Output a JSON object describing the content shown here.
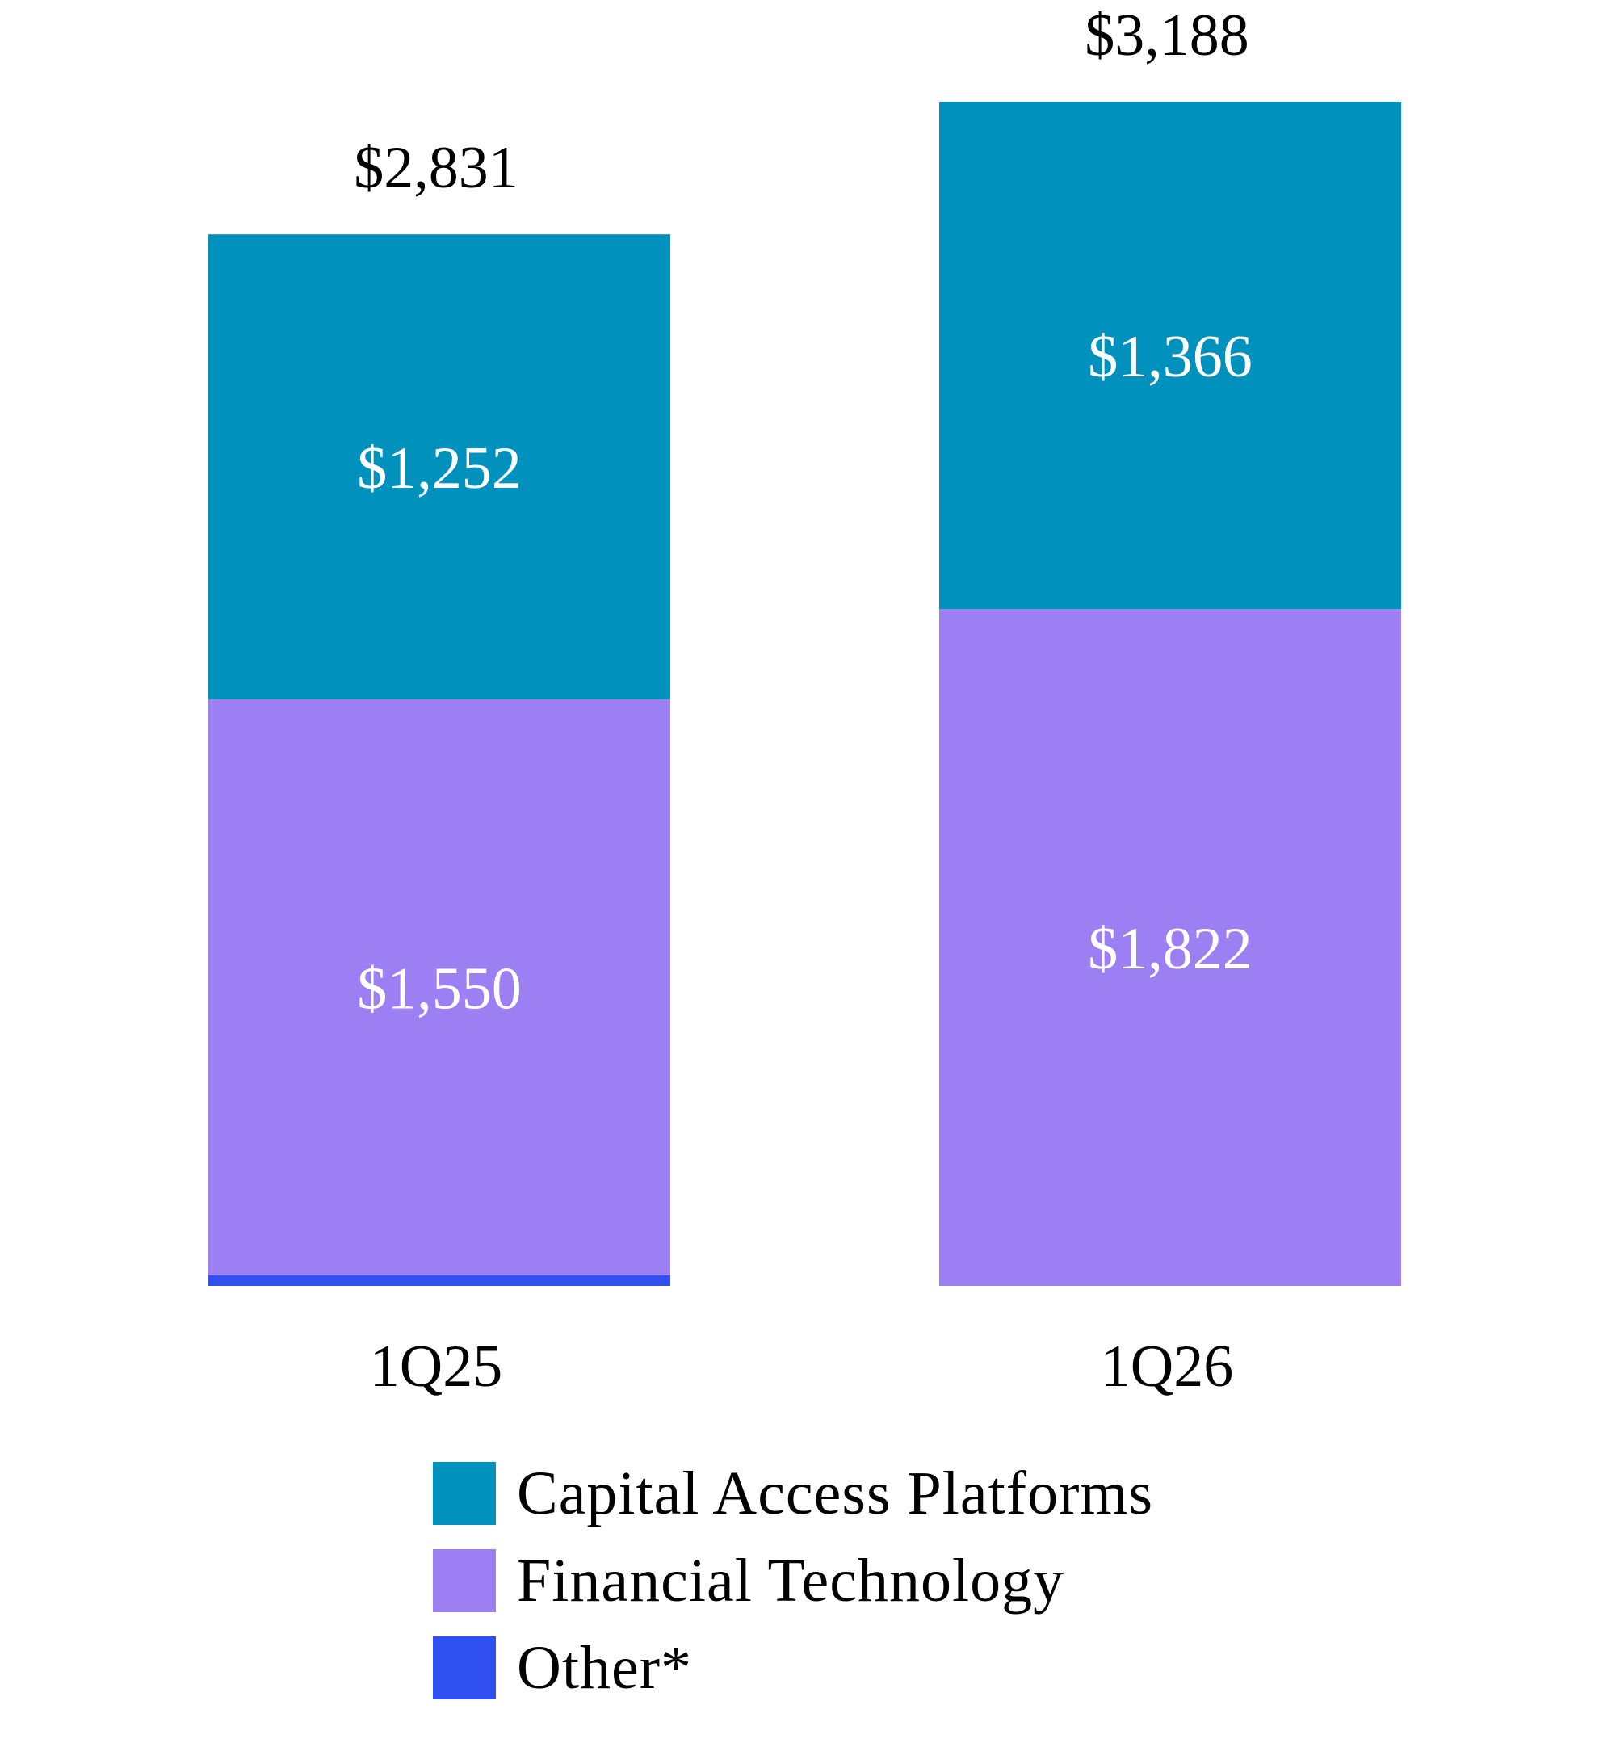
{
  "chart_data": {
    "type": "bar",
    "stacked": true,
    "categories": [
      "1Q25",
      "1Q26"
    ],
    "series": [
      {
        "name": "Other*",
        "values": [
          29,
          0
        ],
        "value_labels": [
          "",
          ""
        ],
        "color": "#2f4ff0"
      },
      {
        "name": "Financial Technology",
        "values": [
          1550,
          1822
        ],
        "value_labels": [
          "$1,550",
          "$1,822"
        ],
        "color": "#9b7ff3"
      },
      {
        "name": "Capital Access Platforms",
        "values": [
          1252,
          1366
        ],
        "value_labels": [
          "$1,252",
          "$1,366"
        ],
        "color": "#0091bd"
      }
    ],
    "totals": [
      2831,
      3188
    ],
    "total_labels": [
      "$2,831",
      "$3,188"
    ],
    "legend": [
      {
        "name": "Capital Access Platforms",
        "color": "#0091bd"
      },
      {
        "name": "Financial Technology",
        "color": "#9b7ff3"
      },
      {
        "name": "Other*",
        "color": "#2f4ff0"
      }
    ],
    "legend_position": "bottom",
    "ylim": [
      0,
      3188
    ],
    "grid": false,
    "title": "",
    "xlabel": "",
    "ylabel": ""
  }
}
